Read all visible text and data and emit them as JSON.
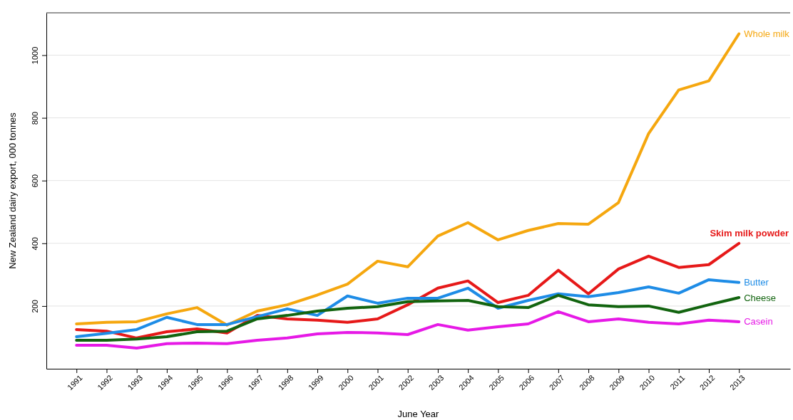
{
  "chart_data": {
    "type": "line",
    "xlabel": "June Year",
    "ylabel": "New Zealand dairy export, 000 tonnes",
    "x": [
      1991,
      1992,
      1993,
      1994,
      1995,
      1996,
      1997,
      1998,
      1999,
      2000,
      2001,
      2002,
      2003,
      2004,
      2005,
      2006,
      2007,
      2008,
      2009,
      2010,
      2011,
      2012,
      2013
    ],
    "xlim": [
      1990,
      2014.7
    ],
    "xticks": [
      1991,
      1992,
      1993,
      1994,
      1995,
      1996,
      1997,
      1998,
      1999,
      2000,
      2001,
      2002,
      2003,
      2004,
      2005,
      2006,
      2007,
      2008,
      2009,
      2010,
      2011,
      2012,
      2013
    ],
    "ylim": [
      0,
      1135
    ],
    "yticks": [
      200,
      400,
      600,
      800,
      1000
    ],
    "grid": "y",
    "marker": "none",
    "line_style": "solid",
    "series": [
      {
        "name": "Whole milk",
        "color": "#f5a70f",
        "values": [
          143,
          148,
          150,
          175,
          195,
          139,
          184,
          204,
          235,
          270,
          343,
          325,
          423,
          466,
          411,
          441,
          463,
          461,
          530,
          750,
          889,
          918,
          1068
        ]
      },
      {
        "name": "Skim milk powder",
        "color": "#e61919",
        "values": [
          125,
          120,
          98,
          118,
          127,
          114,
          170,
          159,
          155,
          148,
          159,
          204,
          257,
          280,
          211,
          234,
          314,
          239,
          318,
          359,
          323,
          332,
          400
        ]
      },
      {
        "name": "Butter",
        "color": "#1e8ce6",
        "values": [
          102,
          113,
          125,
          164,
          141,
          141,
          166,
          191,
          170,
          232,
          209,
          225,
          225,
          257,
          193,
          218,
          239,
          230,
          243,
          261,
          241,
          284,
          275
        ]
      },
      {
        "name": "Cheese",
        "color": "#12640f",
        "values": [
          91,
          91,
          95,
          102,
          118,
          120,
          159,
          170,
          184,
          193,
          198,
          214,
          216,
          218,
          198,
          195,
          234,
          204,
          198,
          200,
          180,
          204,
          227
        ]
      },
      {
        "name": "Casein",
        "color": "#e619e6",
        "values": [
          75,
          75,
          66,
          80,
          82,
          80,
          91,
          98,
          111,
          116,
          114,
          109,
          141,
          123,
          134,
          143,
          182,
          150,
          159,
          148,
          143,
          155,
          150
        ]
      }
    ]
  }
}
